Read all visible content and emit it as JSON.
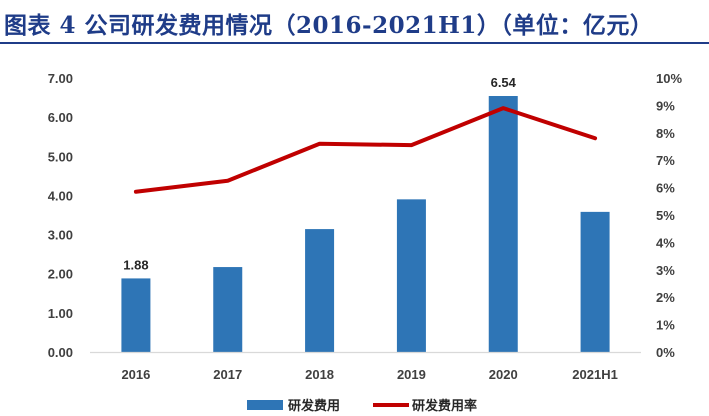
{
  "title": "图表 4 公司研发费用情况（2016-2021H1）（单位：亿元）",
  "colors": {
    "title": "#1f3c88",
    "bar": "#2e75b6",
    "line": "#c00000",
    "axis": "#d9d9d9"
  },
  "chart_data": {
    "type": "bar+line",
    "categories": [
      "2016",
      "2017",
      "2018",
      "2019",
      "2020",
      "2021H1"
    ],
    "series": [
      {
        "name": "研发费用",
        "type": "bar",
        "axis": "left",
        "values": [
          1.88,
          2.17,
          3.14,
          3.9,
          6.54,
          3.58
        ]
      },
      {
        "name": "研发费用率",
        "type": "line",
        "axis": "right",
        "values": [
          5.85,
          6.25,
          7.6,
          7.55,
          8.9,
          7.8
        ]
      }
    ],
    "data_labels": [
      {
        "category": "2016",
        "text": "1.88"
      },
      {
        "category": "2020",
        "text": "6.54"
      }
    ],
    "y_left": {
      "min": 0,
      "max": 7,
      "ticks": [
        "0.00",
        "1.00",
        "2.00",
        "3.00",
        "4.00",
        "5.00",
        "6.00",
        "7.00"
      ]
    },
    "y_right": {
      "min": 0,
      "max": 10,
      "ticks": [
        "0%",
        "1%",
        "2%",
        "3%",
        "4%",
        "5%",
        "6%",
        "7%",
        "8%",
        "9%",
        "10%"
      ]
    },
    "grid": false,
    "legend_position": "bottom"
  }
}
